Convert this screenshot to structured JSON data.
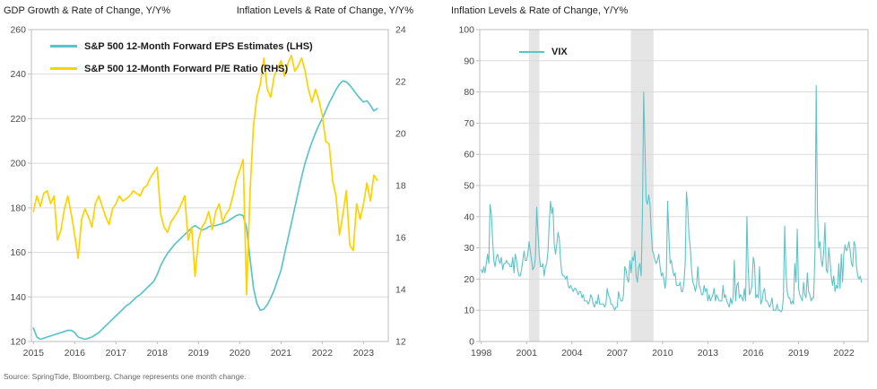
{
  "style": {
    "accent_teal": "#5CC3C9",
    "accent_yellow": "#FFD100",
    "grid_color": "#DADADA",
    "border_color": "#BDBDBD",
    "band_color": "#E5E5E5",
    "axis_text_color": "#4A4A4A",
    "title_color": "#1F1F1F"
  },
  "footer": {
    "source_note": "Source: SpringTide, Bloomberg. Change represents one month change."
  },
  "chart_data": [
    {
      "type": "line",
      "title": "GDP Growth & Rate of Change, Y/Y%",
      "title_right": "Inflation Levels & Rate of Change, Y/Y%",
      "grid": true,
      "legend_position": "top-left-inside",
      "x_axis": {
        "range": [
          2014.95,
          2023.6
        ],
        "ticks": [
          2015,
          2016,
          2017,
          2018,
          2019,
          2020,
          2021,
          2022,
          2023
        ]
      },
      "y_left": {
        "range": [
          120,
          260
        ],
        "ticks": [
          260,
          240,
          220,
          200,
          180,
          160,
          140,
          120
        ]
      },
      "y_right": {
        "range": [
          12,
          24
        ],
        "ticks": [
          24,
          22,
          20,
          18,
          16,
          14,
          12
        ]
      },
      "series": [
        {
          "id": "eps",
          "name": "S&P 500 12-Month Forward EPS Estimates (LHS)",
          "axis": "left",
          "color": "#5CC3C9",
          "width": 1.7,
          "x_start": 2015.0,
          "x_step": 0.0833333,
          "values": [
            126,
            122,
            121,
            121.5,
            122,
            122.5,
            123,
            123.5,
            124,
            124.5,
            125,
            125,
            124,
            122,
            121.5,
            121,
            121.5,
            122,
            123,
            124,
            125.5,
            127,
            128.5,
            130,
            131.5,
            133,
            134.5,
            136,
            137,
            138.5,
            140,
            141,
            142.5,
            144,
            145.5,
            147,
            150,
            154,
            157,
            159.5,
            161.5,
            163.5,
            165,
            166.5,
            168,
            169.5,
            171,
            172,
            171,
            170,
            170.5,
            171.5,
            172,
            172,
            172.5,
            173,
            173.5,
            174.5,
            175.5,
            176.5,
            177,
            176.5,
            171,
            157,
            144,
            137,
            134,
            134.5,
            136.5,
            139.5,
            143,
            147.5,
            152,
            159,
            166,
            173,
            180,
            187,
            194,
            200,
            205,
            209.5,
            213.5,
            217,
            220,
            223.5,
            227,
            230,
            233,
            235.5,
            237,
            236.5,
            235,
            233,
            231,
            229,
            227.5,
            228,
            226,
            223.5,
            224.5
          ]
        },
        {
          "id": "pe",
          "name": "S&P 500 12-Month Forward P/E Ratio (RHS)",
          "axis": "right",
          "color": "#FFD100",
          "width": 1.7,
          "x_start": 2015.0,
          "x_step": 0.0833333,
          "values": [
            17.0,
            17.6,
            17.2,
            17.7,
            17.8,
            17.3,
            17.6,
            15.9,
            16.3,
            17.1,
            17.6,
            16.9,
            16.1,
            15.2,
            16.7,
            17.1,
            16.8,
            16.4,
            17.3,
            17.6,
            17.2,
            16.8,
            16.5,
            17.1,
            17.3,
            17.6,
            17.4,
            17.5,
            17.6,
            17.8,
            17.7,
            17.6,
            17.9,
            18.0,
            18.3,
            18.5,
            18.7,
            16.9,
            16.4,
            16.2,
            16.6,
            16.8,
            17.0,
            17.3,
            17.6,
            15.9,
            16.4,
            14.5,
            15.9,
            16.4,
            16.6,
            17.0,
            16.3,
            17.0,
            17.3,
            16.6,
            16.9,
            17.1,
            17.6,
            18.2,
            18.6,
            19.0,
            13.8,
            17.8,
            20.3,
            21.4,
            21.9,
            22.9,
            21.7,
            21.4,
            22.2,
            22.5,
            22.8,
            22.2,
            22.7,
            23.0,
            22.4,
            22.6,
            22.9,
            22.4,
            21.7,
            21.2,
            21.7,
            21.3,
            20.7,
            19.7,
            19.6,
            18.2,
            17.6,
            16.1,
            16.9,
            17.8,
            15.7,
            15.5,
            17.3,
            16.7,
            17.3,
            18.1,
            17.4,
            18.4,
            18.2
          ]
        }
      ]
    },
    {
      "type": "line",
      "title": "Inflation Levels & Rate of Change, Y/Y%",
      "grid": true,
      "legend_position": "top-left-inside",
      "x_axis": {
        "range": [
          1997.9,
          2023.6
        ],
        "ticks": [
          1998,
          2001,
          2004,
          2007,
          2010,
          2013,
          2016,
          2019,
          2022
        ]
      },
      "y_left": {
        "range": [
          0,
          100
        ],
        "ticks": [
          100,
          90,
          80,
          70,
          60,
          50,
          40,
          30,
          20,
          10,
          0
        ]
      },
      "recession_bands": [
        [
          2001.15,
          2001.85
        ],
        [
          2007.9,
          2009.4
        ]
      ],
      "series": [
        {
          "id": "vix",
          "name": "VIX",
          "axis": "left",
          "color": "#5CC3C9",
          "width": 1.1,
          "x_start": 1998.0,
          "x_step": 0.0833333,
          "values": [
            23,
            22,
            24,
            22,
            25,
            28,
            25,
            44,
            41,
            33,
            26,
            24,
            27,
            28,
            26,
            25,
            27,
            23,
            25,
            25,
            26,
            25,
            25,
            24,
            24,
            27,
            22,
            28,
            26,
            23,
            21,
            21,
            23,
            26,
            29,
            26,
            26,
            28,
            32,
            29,
            26,
            23,
            24,
            27,
            43,
            35,
            28,
            24,
            24,
            25,
            21,
            24,
            25,
            29,
            38,
            45,
            41,
            43,
            31,
            28,
            31,
            35,
            33,
            26,
            22,
            21,
            21,
            20,
            21,
            18,
            17,
            18,
            17,
            16,
            17,
            17,
            16,
            15,
            16,
            16,
            14,
            15,
            13,
            13,
            13,
            12,
            13,
            15,
            14,
            12,
            11,
            13,
            12,
            15,
            12,
            12,
            12,
            12,
            11,
            12,
            17,
            15,
            14,
            12,
            12,
            11,
            10,
            11,
            11,
            16,
            14,
            13,
            13,
            15,
            24,
            23,
            20,
            19,
            26,
            22,
            27,
            26,
            29,
            21,
            19,
            24,
            25,
            21,
            40,
            80,
            63,
            45,
            44,
            47,
            44,
            36,
            29,
            28,
            26,
            25,
            26,
            28,
            24,
            21,
            22,
            20,
            17,
            21,
            45,
            34,
            25,
            26,
            23,
            21,
            22,
            18,
            18,
            18,
            19,
            16,
            16,
            19,
            25,
            48,
            43,
            34,
            30,
            23,
            19,
            18,
            16,
            18,
            24,
            18,
            17,
            15,
            15,
            18,
            16,
            17,
            13,
            15,
            13,
            14,
            15,
            17,
            13,
            15,
            14,
            13,
            13,
            13,
            18,
            14,
            15,
            13,
            12,
            11,
            14,
            12,
            14,
            26,
            13,
            18,
            19,
            14,
            15,
            14,
            13,
            17,
            13,
            40,
            24,
            15,
            16,
            18,
            27,
            25,
            14,
            15,
            14,
            24,
            12,
            13,
            16,
            17,
            13,
            13,
            12,
            11,
            12,
            14,
            10,
            10,
            10,
            12,
            10,
            10,
            9.5,
            10,
            14,
            37,
            22,
            16,
            14,
            14,
            12,
            13,
            12,
            25,
            19,
            36,
            17,
            15,
            14,
            13,
            19,
            15,
            14,
            22,
            16,
            15,
            13,
            14,
            14,
            28,
            82,
            42,
            30,
            32,
            26,
            24,
            29,
            38,
            23,
            22,
            30,
            26,
            21,
            18,
            21,
            16,
            18,
            17,
            25,
            17,
            28,
            19,
            28,
            31,
            29,
            30,
            32,
            29,
            25,
            24,
            32,
            31,
            24,
            21,
            20,
            21,
            19
          ]
        }
      ]
    }
  ]
}
